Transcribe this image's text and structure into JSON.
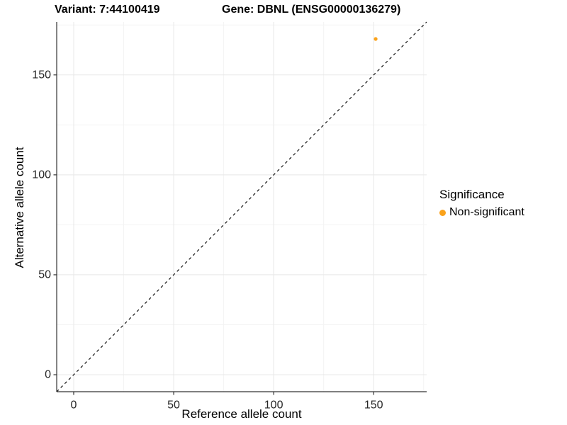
{
  "titles": {
    "variant": "Variant: 7:44100419",
    "gene": "Gene: DBNL (ENSG00000136279)"
  },
  "legend": {
    "title": "Significance",
    "items": [
      {
        "label": "Non-significant",
        "color": "#FAA21B",
        "shape": "circle"
      }
    ]
  },
  "chart_data": {
    "type": "scatter",
    "title": "Variant: 7:44100419  /  Gene: DBNL (ENSG00000136279)",
    "xlabel": "Reference allele count",
    "ylabel": "Alternative allele count",
    "xlim": [
      -8.5,
      176.5
    ],
    "ylim": [
      -8.5,
      176.5
    ],
    "x_ticks": [
      0,
      50,
      100,
      150
    ],
    "y_ticks": [
      0,
      50,
      100,
      150
    ],
    "x_minor_ticks": [
      25,
      75,
      125,
      175
    ],
    "y_minor_ticks": [
      25,
      75,
      125,
      175
    ],
    "grid": "major+minor",
    "legend_position": "right",
    "reference_line": {
      "type": "identity",
      "slope": 1,
      "intercept": 0,
      "linestyle": "dashed",
      "color": "#111111"
    },
    "series": [
      {
        "name": "Non-significant",
        "color": "#FAA21B",
        "points": [
          {
            "x": 151,
            "y": 168
          }
        ]
      }
    ]
  },
  "colors": {
    "point": "#FAA21B",
    "axis_line": "#333333",
    "tick_text": "#262626",
    "grid_major": "#E8E8E8",
    "grid_minor": "#F3F3F3",
    "background": "#FFFFFF"
  }
}
